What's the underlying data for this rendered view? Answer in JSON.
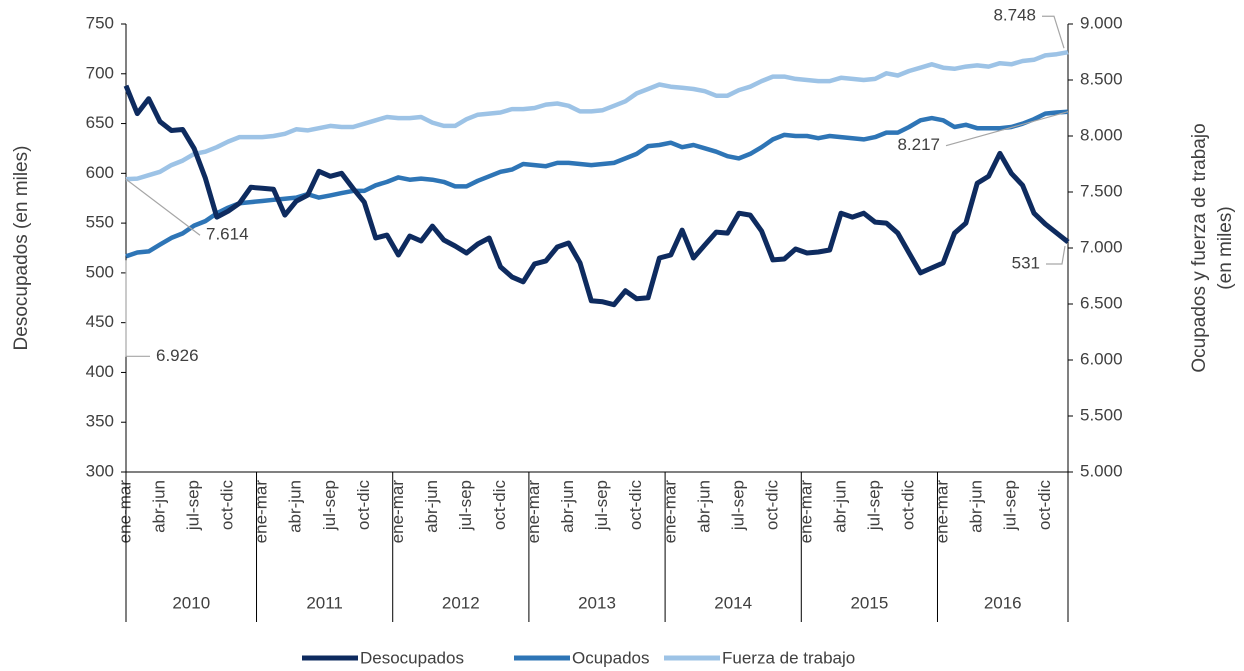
{
  "chart_data": {
    "type": "line",
    "categories": [
      "ene-mar",
      null,
      null,
      "abr-jun",
      null,
      null,
      "jul-sep",
      null,
      null,
      "oct-dic",
      null,
      null,
      "ene-mar",
      null,
      null,
      "abr-jun",
      null,
      null,
      "jul-sep",
      null,
      null,
      "oct-dic",
      null,
      null,
      "ene-mar",
      null,
      null,
      "abr-jun",
      null,
      null,
      "jul-sep",
      null,
      null,
      "oct-dic",
      null,
      null,
      "ene-mar",
      null,
      null,
      "abr-jun",
      null,
      null,
      "jul-sep",
      null,
      null,
      "oct-dic",
      null,
      null,
      "ene-mar",
      null,
      null,
      "abr-jun",
      null,
      null,
      "jul-sep",
      null,
      null,
      "oct-dic",
      null,
      null,
      "ene-mar",
      null,
      null,
      "abr-jun",
      null,
      null,
      "jul-sep",
      null,
      null,
      "oct-dic",
      null,
      null,
      "ene-mar",
      null,
      null,
      "abr-jun",
      null,
      null,
      "jul-sep",
      null,
      null,
      "oct-dic",
      null,
      null
    ],
    "groups": [
      "2010",
      "2011",
      "2012",
      "2013",
      "2014",
      "2015",
      "2016"
    ],
    "ylabel": "Desocupados (en miles)",
    "y2label": [
      "Ocupados y fuerza de trabajo",
      "(en miles)"
    ],
    "ylim": [
      300,
      750
    ],
    "yticks": [
      300,
      350,
      400,
      450,
      500,
      550,
      600,
      650,
      700,
      750
    ],
    "y2lim": [
      5000,
      9000
    ],
    "y2ticks": [
      {
        "value": 5000,
        "label": "5.000"
      },
      {
        "value": 5500,
        "label": "5.500"
      },
      {
        "value": 6000,
        "label": "6.000"
      },
      {
        "value": 6500,
        "label": "6.500"
      },
      {
        "value": 7000,
        "label": "7.000"
      },
      {
        "value": 7500,
        "label": "7.500"
      },
      {
        "value": 8000,
        "label": "8.000"
      },
      {
        "value": 8500,
        "label": "8.500"
      },
      {
        "value": 9000,
        "label": "9.000"
      }
    ],
    "legend": "bottom",
    "series": [
      {
        "name": "Desocupados",
        "color": "#0e2b5f",
        "values": [
          688,
          660,
          675,
          652,
          643,
          644,
          625,
          595,
          556,
          562,
          570,
          586,
          585,
          584,
          558,
          572,
          578,
          602,
          597,
          600,
          585,
          571,
          535,
          538,
          518,
          537,
          532,
          547,
          533,
          527,
          520,
          529,
          535,
          506,
          496,
          491,
          509,
          512,
          526,
          530,
          510,
          472,
          471,
          468,
          482,
          474,
          475,
          515,
          518,
          543,
          515,
          528,
          541,
          540,
          560,
          558,
          542,
          513,
          514,
          524,
          520,
          521,
          523,
          560,
          556,
          560,
          551,
          550,
          540,
          520,
          500,
          505,
          510,
          540,
          550,
          590,
          597,
          620,
          600,
          588,
          560,
          549,
          540,
          531
        ],
        "value_labels": [
          null,
          null,
          null,
          null,
          null,
          null,
          null,
          null,
          null,
          null,
          null,
          null,
          null,
          null,
          null,
          null,
          null,
          null,
          null,
          null,
          null,
          null,
          null,
          null,
          null,
          null,
          null,
          null,
          null,
          null,
          null,
          null,
          null,
          null,
          null,
          null,
          null,
          null,
          null,
          null,
          null,
          null,
          null,
          null,
          null,
          null,
          null,
          null,
          null,
          null,
          null,
          null,
          null,
          null,
          null,
          null,
          null,
          null,
          null,
          null,
          null,
          null,
          null,
          null,
          null,
          null,
          null,
          null,
          null,
          null,
          null,
          null,
          null,
          null,
          null,
          null,
          null,
          null,
          null,
          null,
          null,
          null,
          null,
          "531"
        ]
      },
      {
        "name": "Ocupados",
        "color": "#2e75b6",
        "axis": "y2",
        "values": [
          6926,
          6960,
          6970,
          7030,
          7090,
          7130,
          7200,
          7240,
          7310,
          7360,
          7400,
          7410,
          7420,
          7430,
          7440,
          7450,
          7480,
          7450,
          7470,
          7490,
          7510,
          7510,
          7560,
          7590,
          7630,
          7610,
          7620,
          7610,
          7590,
          7550,
          7550,
          7600,
          7640,
          7680,
          7700,
          7750,
          7740,
          7730,
          7760,
          7760,
          7750,
          7740,
          7750,
          7760,
          7800,
          7840,
          7910,
          7920,
          7940,
          7900,
          7920,
          7890,
          7860,
          7820,
          7800,
          7840,
          7900,
          7970,
          8010,
          8000,
          8000,
          7980,
          8000,
          7990,
          7980,
          7970,
          7990,
          8030,
          8030,
          8080,
          8140,
          8160,
          8140,
          8080,
          8100,
          8070,
          8070,
          8070,
          8080,
          8110,
          8150,
          8200,
          8210,
          8217
        ],
        "value_labels": [
          "6.926",
          null,
          null,
          null,
          null,
          null,
          null,
          null,
          null,
          null,
          null,
          null,
          null,
          null,
          null,
          null,
          null,
          null,
          null,
          null,
          null,
          null,
          null,
          null,
          null,
          null,
          null,
          null,
          null,
          null,
          null,
          null,
          null,
          null,
          null,
          null,
          null,
          null,
          null,
          null,
          null,
          null,
          null,
          null,
          null,
          null,
          null,
          null,
          null,
          null,
          null,
          null,
          null,
          null,
          null,
          null,
          null,
          null,
          null,
          null,
          null,
          null,
          null,
          null,
          null,
          null,
          null,
          null,
          null,
          null,
          null,
          null,
          null,
          null,
          null,
          null,
          null,
          null,
          null,
          null,
          null,
          null,
          null,
          "8.217"
        ]
      },
      {
        "name": "Fuerza de trabajo",
        "color": "#9dc3e6",
        "axis": "y2",
        "values": [
          7614,
          7620,
          7650,
          7680,
          7740,
          7780,
          7840,
          7860,
          7900,
          7950,
          7990,
          7990,
          7990,
          8000,
          8020,
          8060,
          8050,
          8070,
          8090,
          8080,
          8080,
          8110,
          8140,
          8170,
          8160,
          8160,
          8170,
          8120,
          8090,
          8090,
          8150,
          8190,
          8200,
          8210,
          8240,
          8240,
          8250,
          8280,
          8290,
          8270,
          8220,
          8220,
          8230,
          8270,
          8310,
          8380,
          8420,
          8460,
          8440,
          8430,
          8420,
          8400,
          8360,
          8360,
          8410,
          8440,
          8490,
          8530,
          8530,
          8510,
          8500,
          8490,
          8490,
          8520,
          8510,
          8500,
          8510,
          8560,
          8540,
          8580,
          8610,
          8640,
          8610,
          8600,
          8620,
          8630,
          8620,
          8650,
          8640,
          8670,
          8680,
          8720,
          8730,
          8748
        ],
        "value_labels": [
          "7.614",
          null,
          null,
          null,
          null,
          null,
          null,
          null,
          null,
          null,
          null,
          null,
          null,
          null,
          null,
          null,
          null,
          null,
          null,
          null,
          null,
          null,
          null,
          null,
          null,
          null,
          null,
          null,
          null,
          null,
          null,
          null,
          null,
          null,
          null,
          null,
          null,
          null,
          null,
          null,
          null,
          null,
          null,
          null,
          null,
          null,
          null,
          null,
          null,
          null,
          null,
          null,
          null,
          null,
          null,
          null,
          null,
          null,
          null,
          null,
          null,
          null,
          null,
          null,
          null,
          null,
          null,
          null,
          null,
          null,
          null,
          null,
          null,
          null,
          null,
          null,
          null,
          null,
          null,
          null,
          null,
          null,
          null,
          "8.748"
        ]
      }
    ]
  }
}
